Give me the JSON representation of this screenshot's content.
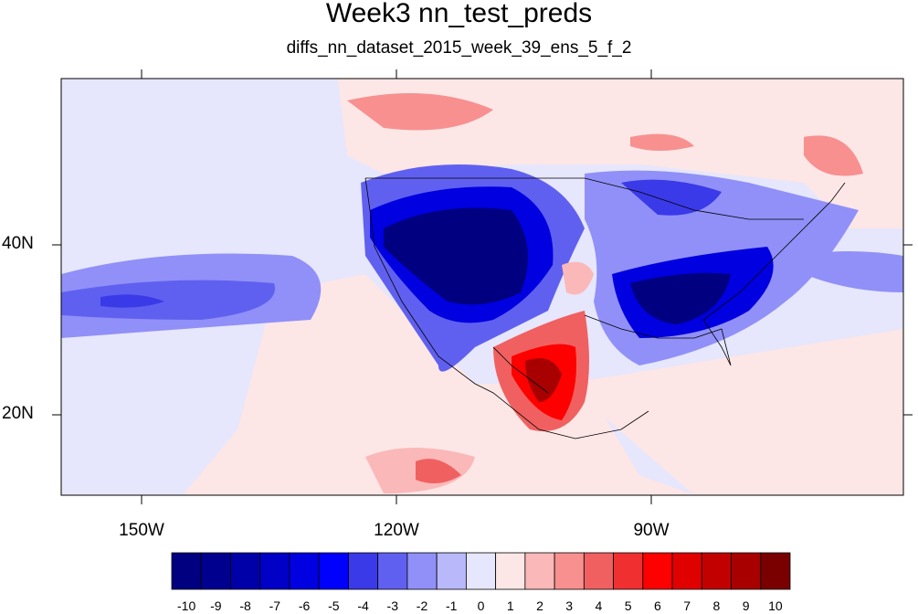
{
  "title": "Week3 nn_test_preds",
  "subtitle": "diffs_nn_dataset_2015_week_39_ens_5_f_2",
  "lat_labels": [
    "40N",
    "20N"
  ],
  "lon_labels": [
    "150W",
    "120W",
    "90W"
  ],
  "colorbar": {
    "labels": [
      "-10",
      "-9",
      "-8",
      "-7",
      "-6",
      "-5",
      "-4",
      "-3",
      "-2",
      "-1",
      "0",
      "1",
      "2",
      "3",
      "4",
      "5",
      "6",
      "7",
      "8",
      "9",
      "10"
    ],
    "colors": [
      "#000080",
      "#00008f",
      "#0000a8",
      "#0000c6",
      "#0000e0",
      "#0000ff",
      "#3a3ae8",
      "#6060f0",
      "#9090f8",
      "#b8b8fb",
      "#e6e6fc",
      "#fde6e6",
      "#fbb8b8",
      "#f89090",
      "#f06060",
      "#f03030",
      "#ff0000",
      "#e00000",
      "#c20000",
      "#a80000",
      "#7a0000"
    ]
  },
  "map": {
    "region": "Contiguous United States, Mexico, eastern North Pacific and western Atlantic",
    "lon_range": [
      -160,
      -62
    ],
    "lat_range": [
      11,
      58
    ]
  }
}
